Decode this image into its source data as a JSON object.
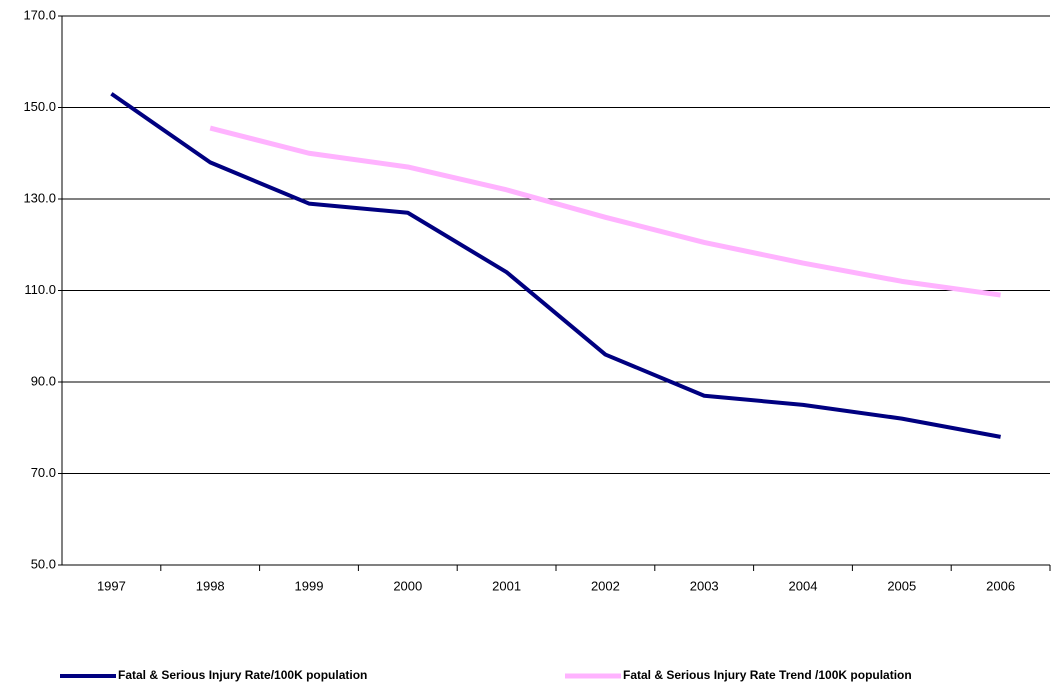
{
  "chart_data": {
    "type": "line",
    "categories": [
      "1997",
      "1998",
      "1999",
      "2000",
      "2001",
      "2002",
      "2003",
      "2004",
      "2005",
      "2006"
    ],
    "series": [
      {
        "name": "Fatal & Serious Injury Rate/100K population",
        "color": "#000080",
        "values": [
          153,
          138,
          129,
          127,
          114,
          96,
          87,
          85,
          82,
          78
        ]
      },
      {
        "name": "Fatal & Serious Injury Rate Trend /100K population",
        "color": "#ffb3ff",
        "values": [
          null,
          145.5,
          140,
          137,
          132,
          126,
          120.5,
          116,
          112,
          109
        ]
      }
    ],
    "ylim": [
      50,
      170
    ],
    "yticks": [
      {
        "value": 50,
        "label": "50.0"
      },
      {
        "value": 70,
        "label": "70.0"
      },
      {
        "value": 90,
        "label": "90.0"
      },
      {
        "value": 110,
        "label": "110.0"
      },
      {
        "value": 130,
        "label": "130.0"
      },
      {
        "value": 150,
        "label": "150.0"
      },
      {
        "value": 170,
        "label": "170.0"
      }
    ],
    "grid": true
  }
}
